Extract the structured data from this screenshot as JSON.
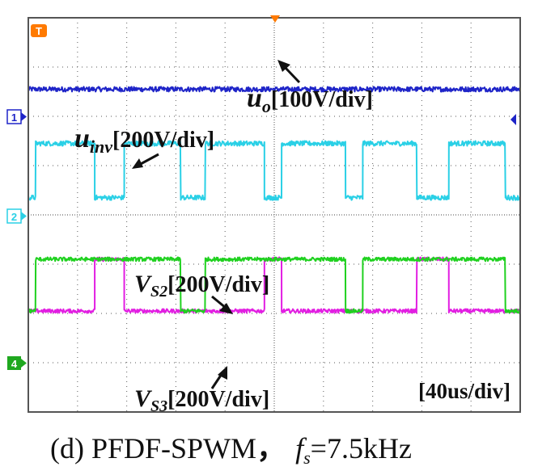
{
  "chart_data": {
    "type": "line",
    "title": "(d) PFDF-SPWM",
    "caption_symbol": "f",
    "caption_subscript": "s",
    "caption_value": "=7.5kHz",
    "caption_separator": "，",
    "timebase": "[40us/div]",
    "grid": true,
    "divisions": {
      "x": 10,
      "y": 8
    },
    "channel_markers": [
      "1",
      "2",
      "4"
    ],
    "trigger_marker": "T",
    "colors": {
      "uo": "#1e24c8",
      "uinv": "#2ad0e6",
      "vs2": "#1fd11f",
      "vs3": "#e21ee2",
      "grid": "#777777",
      "frame": "#555555",
      "trigger": "#ff7a00"
    },
    "labels": {
      "uo": {
        "main": "u",
        "sub": "o",
        "scale": "[100V/div]"
      },
      "uinv": {
        "main": "u",
        "sub": "inv",
        "scale": "[200V/div]"
      },
      "vs2": {
        "main": "V",
        "sub": "S2",
        "scale": "[200V/div]"
      },
      "vs3": {
        "main": "V",
        "sub": "S3",
        "scale": "[200V/div]"
      }
    },
    "x_range_div": [
      0,
      10
    ],
    "series": [
      {
        "name": "uo",
        "levels_div": [
          6.55,
          6.55
        ],
        "segments": [
          [
            0,
            10,
            0
          ]
        ],
        "noise": 0.05
      },
      {
        "name": "uinv",
        "levels_div": [
          4.35,
          5.45
        ],
        "segments": [
          [
            0,
            0.15,
            0
          ],
          [
            0.15,
            1.35,
            1
          ],
          [
            1.35,
            1.95,
            0
          ],
          [
            1.95,
            3.1,
            1
          ],
          [
            3.1,
            3.6,
            0
          ],
          [
            3.6,
            4.8,
            1
          ],
          [
            4.8,
            5.15,
            0
          ],
          [
            5.15,
            6.45,
            1
          ],
          [
            6.45,
            6.8,
            0
          ],
          [
            6.8,
            7.9,
            1
          ],
          [
            7.9,
            8.55,
            0
          ],
          [
            8.55,
            9.7,
            1
          ],
          [
            9.7,
            10,
            0
          ]
        ],
        "noise": 0.05
      },
      {
        "name": "vs3",
        "levels_div": [
          2.05,
          3.1
        ],
        "segments": [
          [
            0,
            0.15,
            0
          ],
          [
            0.15,
            1.35,
            0
          ],
          [
            1.35,
            1.95,
            1
          ],
          [
            1.95,
            3.1,
            0
          ],
          [
            3.1,
            3.6,
            0
          ],
          [
            3.6,
            4.8,
            0
          ],
          [
            4.8,
            5.15,
            1
          ],
          [
            5.15,
            6.45,
            0
          ],
          [
            6.45,
            6.8,
            0
          ],
          [
            6.8,
            7.9,
            0
          ],
          [
            7.9,
            8.55,
            1
          ],
          [
            8.55,
            9.7,
            0
          ],
          [
            9.7,
            10,
            0
          ]
        ],
        "noise": 0.04
      },
      {
        "name": "vs2",
        "levels_div": [
          2.05,
          3.1
        ],
        "segments": [
          [
            0,
            0.15,
            0
          ],
          [
            0.15,
            1.35,
            1
          ],
          [
            1.35,
            1.95,
            1
          ],
          [
            1.95,
            3.1,
            1
          ],
          [
            3.1,
            3.6,
            0
          ],
          [
            3.6,
            4.8,
            1
          ],
          [
            4.8,
            5.15,
            1
          ],
          [
            5.15,
            6.45,
            1
          ],
          [
            6.45,
            6.8,
            0
          ],
          [
            6.8,
            7.9,
            1
          ],
          [
            7.9,
            8.55,
            1
          ],
          [
            8.55,
            9.7,
            1
          ],
          [
            9.7,
            10,
            0
          ]
        ],
        "noise": 0.04
      }
    ]
  }
}
